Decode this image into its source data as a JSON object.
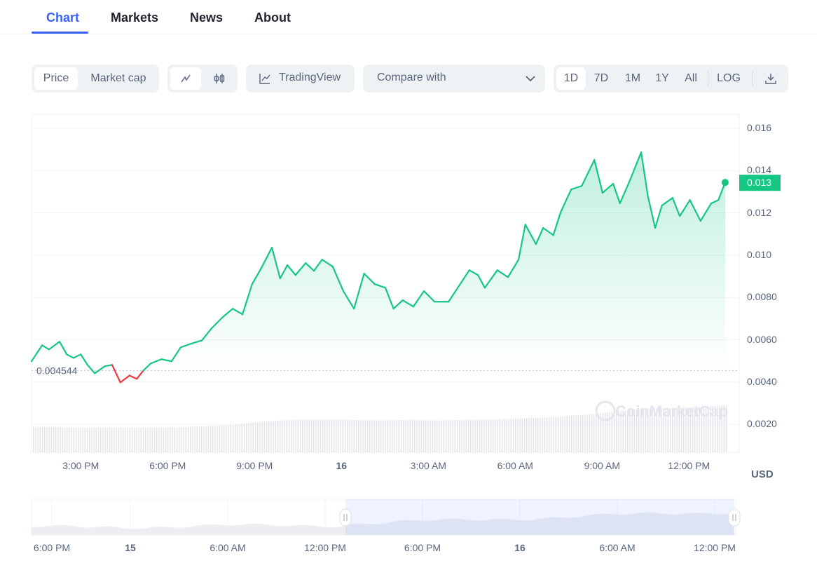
{
  "tabs": [
    {
      "label": "Chart",
      "active": true
    },
    {
      "label": "Markets"
    },
    {
      "label": "News"
    },
    {
      "label": "About"
    }
  ],
  "toolbar": {
    "type_toggle": {
      "price": "Price",
      "market_cap": "Market cap",
      "selected": "Price"
    },
    "chart_style": {
      "line_icon": "line-chart-icon",
      "candle_icon": "candlestick-icon",
      "selected": "line"
    },
    "tradingview": {
      "icon": "trading-view-icon",
      "label": "TradingView"
    },
    "compare": {
      "label": "Compare with",
      "icon": "chevron-down-icon"
    },
    "ranges": [
      "1D",
      "7D",
      "1M",
      "1Y",
      "All"
    ],
    "selected_range": "1D",
    "log": "LOG",
    "download_icon": "download-icon"
  },
  "colors": {
    "accent": "#3861fb",
    "up": "#16c784",
    "down": "#ea3943"
  },
  "chart_data": {
    "type": "line",
    "currency": "USD",
    "current_price_label": "0.013",
    "open_price_label": "0.004544",
    "open_price": 0.004544,
    "watermark": "CoinMarketCap",
    "ylim": [
      0.0008,
      0.0166
    ],
    "y_ticks": [
      "0.016",
      "0.014",
      "0.012",
      "0.010",
      "0.0080",
      "0.0060",
      "0.0040",
      "0.0020"
    ],
    "y_tick_values": [
      0.016,
      0.014,
      0.012,
      0.01,
      0.008,
      0.006,
      0.004,
      0.002
    ],
    "x_ticks": [
      {
        "label": "3:00 PM",
        "t": "15 15:00"
      },
      {
        "label": "6:00 PM",
        "t": "15 18:00"
      },
      {
        "label": "9:00 PM",
        "t": "15 21:00"
      },
      {
        "label": "16",
        "t": "16 00:00",
        "bold": true
      },
      {
        "label": "3:00 AM",
        "t": "16 03:00"
      },
      {
        "label": "6:00 AM",
        "t": "16 06:00"
      },
      {
        "label": "9:00 AM",
        "t": "16 09:00"
      },
      {
        "label": "12:00 PM",
        "t": "16 12:00"
      }
    ],
    "xlim": [
      "15 13:18",
      "16 13:18"
    ],
    "grid": true,
    "series": [
      {
        "points": [
          [
            "15 13:18",
            0.00498
          ],
          [
            "15 13:40",
            0.00574
          ],
          [
            "15 13:54",
            0.00554
          ],
          [
            "15 14:16",
            0.00591
          ],
          [
            "15 14:31",
            0.00531
          ],
          [
            "15 14:45",
            0.00514
          ],
          [
            "15 15:00",
            0.00531
          ],
          [
            "15 15:14",
            0.00481
          ],
          [
            "15 15:29",
            0.00441
          ],
          [
            "15 15:50",
            0.00475
          ],
          [
            "15 16:05",
            0.00481
          ],
          [
            "15 16:22",
            0.00398
          ],
          [
            "15 16:41",
            0.00431
          ],
          [
            "15 16:56",
            0.00415
          ],
          [
            "15 17:10",
            0.00455
          ],
          [
            "15 17:25",
            0.00488
          ],
          [
            "15 17:47",
            0.00508
          ],
          [
            "15 18:08",
            0.00498
          ],
          [
            "15 18:27",
            0.00564
          ],
          [
            "15 18:48",
            0.00581
          ],
          [
            "15 19:11",
            0.00597
          ],
          [
            "15 19:31",
            0.00654
          ],
          [
            "15 19:54",
            0.00707
          ],
          [
            "15 20:15",
            0.00747
          ],
          [
            "15 20:35",
            0.0072
          ],
          [
            "15 20:55",
            0.00863
          ],
          [
            "15 21:14",
            0.00939
          ],
          [
            "15 21:36",
            0.01036
          ],
          [
            "15 21:53",
            0.0089
          ],
          [
            "15 22:08",
            0.00953
          ],
          [
            "15 22:25",
            0.00906
          ],
          [
            "15 22:46",
            0.00963
          ],
          [
            "15 23:03",
            0.00926
          ],
          [
            "15 23:20",
            0.00979
          ],
          [
            "15 23:42",
            0.00946
          ],
          [
            "16 00:04",
            0.0083
          ],
          [
            "16 00:26",
            0.00747
          ],
          [
            "16 00:47",
            0.00913
          ],
          [
            "16 01:09",
            0.00863
          ],
          [
            "16 01:31",
            0.00846
          ],
          [
            "16 01:48",
            0.00747
          ],
          [
            "16 02:07",
            0.00787
          ],
          [
            "16 02:29",
            0.00757
          ],
          [
            "16 02:51",
            0.0083
          ],
          [
            "16 03:13",
            0.0078
          ],
          [
            "16 03:42",
            0.0078
          ],
          [
            "16 04:03",
            0.00853
          ],
          [
            "16 04:25",
            0.00929
          ],
          [
            "16 04:43",
            0.00906
          ],
          [
            "16 04:57",
            0.00846
          ],
          [
            "16 05:23",
            0.00929
          ],
          [
            "16 05:45",
            0.00896
          ],
          [
            "16 06:07",
            0.00979
          ],
          [
            "16 06:21",
            0.01145
          ],
          [
            "16 06:43",
            0.01052
          ],
          [
            "16 06:58",
            0.01129
          ],
          [
            "16 07:19",
            0.01095
          ],
          [
            "16 07:34",
            0.01202
          ],
          [
            "16 07:56",
            0.01311
          ],
          [
            "16 08:18",
            0.01328
          ],
          [
            "16 08:44",
            0.01451
          ],
          [
            "16 09:01",
            0.01295
          ],
          [
            "16 09:23",
            0.01338
          ],
          [
            "16 09:37",
            0.01245
          ],
          [
            "16 09:59",
            0.01361
          ],
          [
            "16 10:21",
            0.01487
          ],
          [
            "16 10:35",
            0.01278
          ],
          [
            "16 10:50",
            0.01129
          ],
          [
            "16 11:04",
            0.01235
          ],
          [
            "16 11:26",
            0.01271
          ],
          [
            "16 11:41",
            0.01185
          ],
          [
            "16 12:02",
            0.01261
          ],
          [
            "16 12:24",
            0.01162
          ],
          [
            "16 12:46",
            0.01245
          ],
          [
            "16 13:01",
            0.01261
          ],
          [
            "16 13:15",
            0.01344
          ]
        ]
      }
    ],
    "volume_relative": [
      0.52,
      0.51,
      0.5,
      0.5,
      0.5,
      0.51,
      0.53,
      0.56,
      0.63,
      0.66,
      0.67,
      0.66,
      0.65,
      0.66,
      0.65,
      0.66,
      0.67,
      0.69,
      0.72,
      0.76,
      0.82,
      0.88,
      0.9,
      0.92,
      0.96
    ]
  },
  "navigator": {
    "labels": [
      "6:00 PM",
      "15",
      "6:00 AM",
      "12:00 PM",
      "6:00 PM",
      "16",
      "6:00 AM",
      "12:00 PM"
    ],
    "bold": [
      "15",
      "16"
    ]
  }
}
